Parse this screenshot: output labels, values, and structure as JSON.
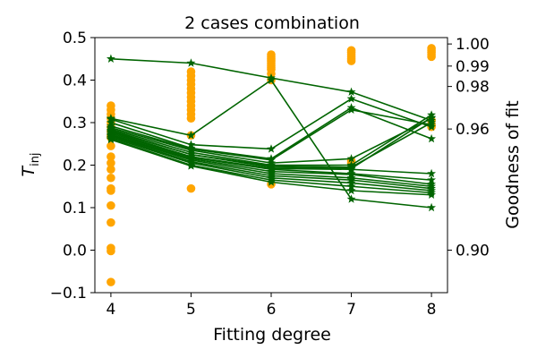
{
  "chart_data": {
    "type": "scatter",
    "title": "2 cases combination",
    "xlabel": "Fitting degree",
    "ylabel": "T",
    "ylabel_subscript": "inj",
    "y2label": "Goodness of fit",
    "x_ticks": [
      4,
      5,
      6,
      7,
      8
    ],
    "y_ticks": [
      -0.1,
      0.0,
      0.1,
      0.2,
      0.3,
      0.4,
      0.5
    ],
    "y_tick_labels": [
      "−0.1",
      "0.0",
      "0.1",
      "0.2",
      "0.3",
      "0.4",
      "0.5"
    ],
    "y2_ticks": [
      0.9,
      0.96,
      0.98,
      0.99,
      1.0
    ],
    "y2_tick_labels": [
      "0.90",
      "0.96",
      "0.98",
      "0.99",
      "1.00"
    ],
    "xlim": [
      3.8,
      8.2
    ],
    "ylim": [
      -0.1,
      0.5
    ],
    "y2_scale": "reciprocal",
    "y2_anchor": {
      "T_at_0_90": 0.0,
      "T_at_1_00": 0.49
    },
    "grid": false,
    "colors": {
      "scatter": "#ffa500",
      "lines": "#006400"
    },
    "scatter_series": {
      "name": "T_inj",
      "points": {
        "4": [
          0.34,
          0.33,
          0.32,
          0.31,
          0.3,
          0.29,
          0.28,
          0.27,
          0.265,
          0.245,
          0.22,
          0.205,
          0.19,
          0.17,
          0.145,
          0.14,
          0.105,
          0.065,
          0.005,
          -0.002,
          -0.075
        ],
        "5": [
          0.42,
          0.41,
          0.4,
          0.39,
          0.38,
          0.37,
          0.36,
          0.35,
          0.34,
          0.33,
          0.32,
          0.31,
          0.27,
          0.145
        ],
        "6": [
          0.46,
          0.455,
          0.45,
          0.445,
          0.44,
          0.435,
          0.43,
          0.425,
          0.415,
          0.4,
          0.155
        ],
        "7": [
          0.47,
          0.465,
          0.46,
          0.455,
          0.45,
          0.445,
          0.21,
          0.205
        ],
        "8": [
          0.475,
          0.47,
          0.465,
          0.46,
          0.455,
          0.305,
          0.295,
          0.29
        ]
      }
    },
    "goodness_series": [
      [
        0.45,
        0.44,
        0.405,
        0.372,
        0.305
      ],
      [
        0.31,
        0.27,
        0.4,
        0.12,
        0.1
      ],
      [
        0.308,
        0.248,
        0.238,
        0.356,
        0.29
      ],
      [
        0.3,
        0.24,
        0.215,
        0.335,
        0.262
      ],
      [
        0.292,
        0.238,
        0.212,
        0.33,
        0.295
      ],
      [
        0.288,
        0.235,
        0.205,
        0.215,
        0.31
      ],
      [
        0.285,
        0.23,
        0.2,
        0.2,
        0.318
      ],
      [
        0.282,
        0.225,
        0.198,
        0.195,
        0.3
      ],
      [
        0.28,
        0.225,
        0.195,
        0.192,
        0.312
      ],
      [
        0.278,
        0.22,
        0.192,
        0.19,
        0.18
      ],
      [
        0.275,
        0.218,
        0.19,
        0.18,
        0.165
      ],
      [
        0.272,
        0.215,
        0.185,
        0.178,
        0.155
      ],
      [
        0.27,
        0.212,
        0.18,
        0.17,
        0.15
      ],
      [
        0.268,
        0.208,
        0.175,
        0.165,
        0.145
      ],
      [
        0.265,
        0.205,
        0.17,
        0.158,
        0.14
      ],
      [
        0.262,
        0.2,
        0.165,
        0.15,
        0.135
      ],
      [
        0.26,
        0.198,
        0.16,
        0.14,
        0.13
      ]
    ]
  }
}
